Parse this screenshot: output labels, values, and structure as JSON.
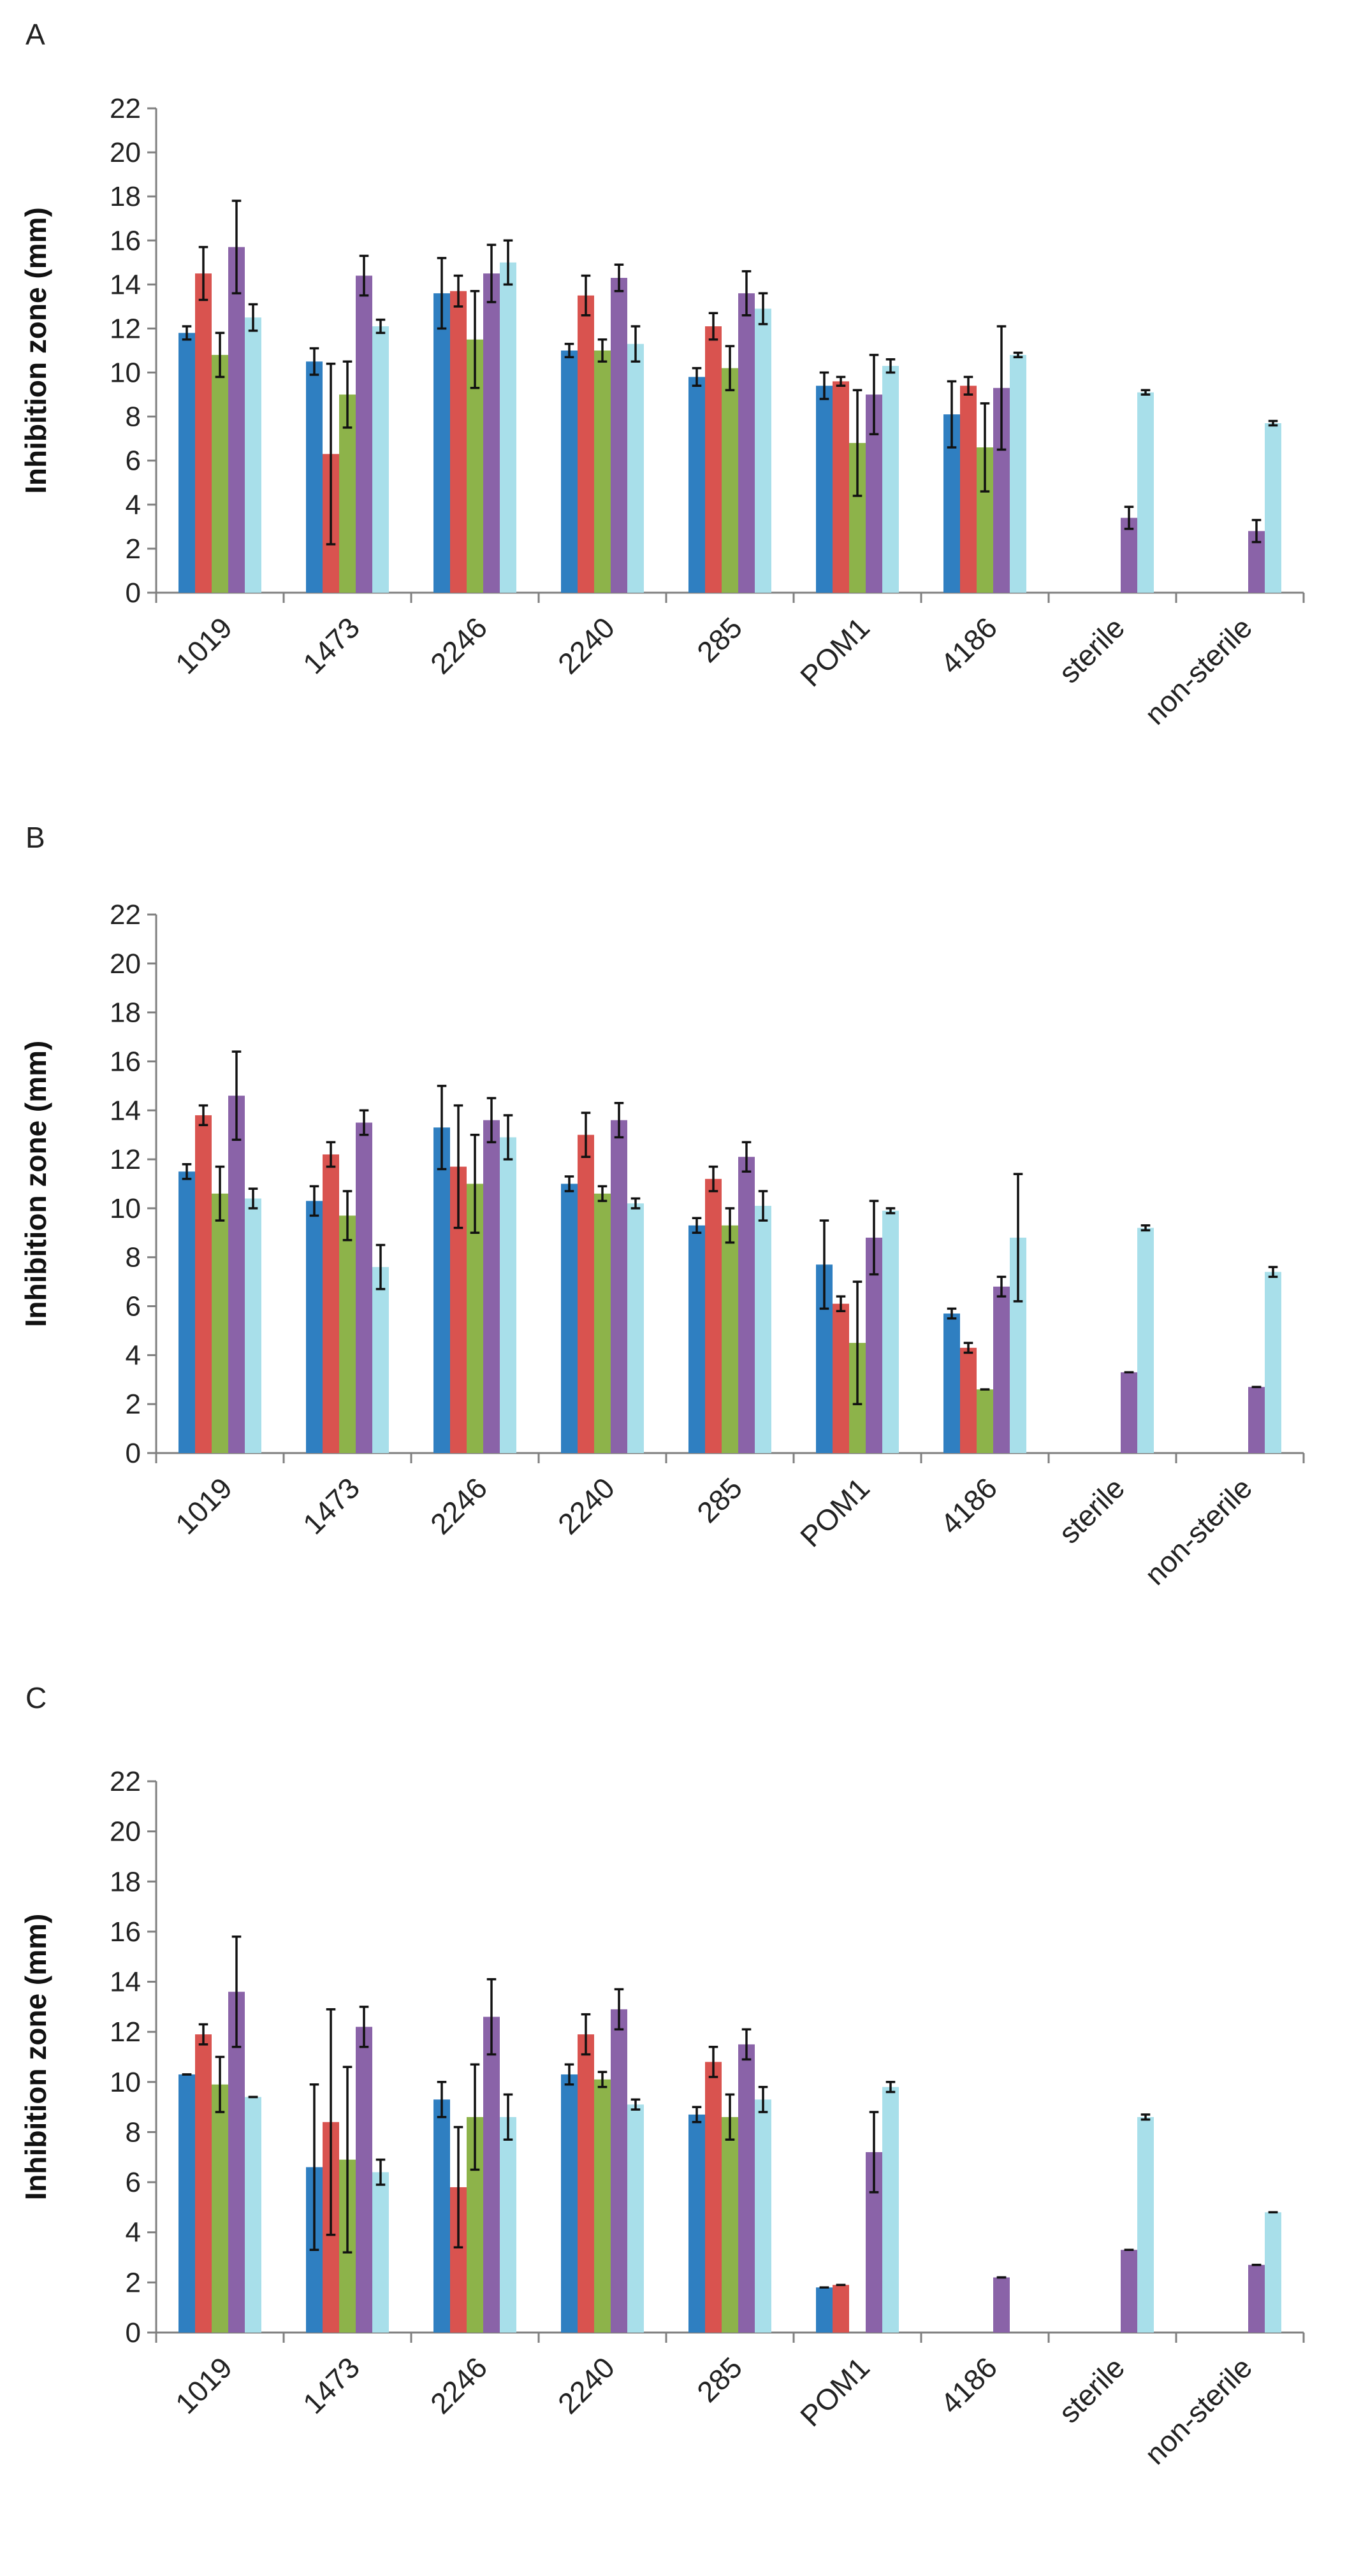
{
  "figure": {
    "series_colors": [
      "#2f7fc1",
      "#d9534f",
      "#8db34a",
      "#8a63a8",
      "#a8dfea"
    ]
  },
  "chart_data": [
    {
      "panel": "A",
      "type": "bar",
      "ylabel": "Inhibition zone (mm)",
      "xlabel": "",
      "ylim": [
        0,
        22
      ],
      "yticks": [
        0,
        2,
        4,
        6,
        8,
        10,
        12,
        14,
        16,
        18,
        20,
        22
      ],
      "categories": [
        "1019",
        "1473",
        "2246",
        "2240",
        "285",
        "POM1",
        "4186",
        "sterile",
        "non-sterile"
      ],
      "series": [
        {
          "values": [
            11.8,
            10.5,
            13.6,
            11.0,
            9.8,
            9.4,
            8.1,
            0,
            0
          ],
          "errors": [
            0.3,
            0.6,
            1.6,
            0.3,
            0.4,
            0.6,
            1.5,
            0,
            0
          ]
        },
        {
          "values": [
            14.5,
            6.3,
            13.7,
            13.5,
            12.1,
            9.6,
            9.4,
            0,
            0
          ],
          "errors": [
            1.2,
            4.1,
            0.7,
            0.9,
            0.6,
            0.2,
            0.4,
            0,
            0
          ]
        },
        {
          "values": [
            10.8,
            9.0,
            11.5,
            11.0,
            10.2,
            6.8,
            6.6,
            0,
            0
          ],
          "errors": [
            1.0,
            1.5,
            2.2,
            0.5,
            1.0,
            2.4,
            2.0,
            0,
            0
          ]
        },
        {
          "values": [
            15.7,
            14.4,
            14.5,
            14.3,
            13.6,
            9.0,
            9.3,
            3.4,
            2.8
          ],
          "errors": [
            2.1,
            0.9,
            1.3,
            0.6,
            1.0,
            1.8,
            2.8,
            0.5,
            0.5
          ]
        },
        {
          "values": [
            12.5,
            12.1,
            15.0,
            11.3,
            12.9,
            10.3,
            10.8,
            9.1,
            7.7
          ],
          "errors": [
            0.6,
            0.3,
            1.0,
            0.8,
            0.7,
            0.3,
            0.1,
            0.1,
            0.1
          ]
        }
      ]
    },
    {
      "panel": "B",
      "type": "bar",
      "ylabel": "Inhibition zone (mm)",
      "xlabel": "",
      "ylim": [
        0,
        22
      ],
      "yticks": [
        0,
        2,
        4,
        6,
        8,
        10,
        12,
        14,
        16,
        18,
        20,
        22
      ],
      "categories": [
        "1019",
        "1473",
        "2246",
        "2240",
        "285",
        "POM1",
        "4186",
        "sterile",
        "non-sterile"
      ],
      "series": [
        {
          "values": [
            11.5,
            10.3,
            13.3,
            11.0,
            9.3,
            7.7,
            5.7,
            0,
            0
          ],
          "errors": [
            0.3,
            0.6,
            1.7,
            0.3,
            0.3,
            1.8,
            0.2,
            0,
            0
          ]
        },
        {
          "values": [
            13.8,
            12.2,
            11.7,
            13.0,
            11.2,
            6.1,
            4.3,
            0,
            0
          ],
          "errors": [
            0.4,
            0.5,
            2.5,
            0.9,
            0.5,
            0.3,
            0.2,
            0,
            0
          ]
        },
        {
          "values": [
            10.6,
            9.7,
            11.0,
            10.6,
            9.3,
            4.5,
            2.6,
            0,
            0
          ],
          "errors": [
            1.1,
            1.0,
            2.0,
            0.3,
            0.7,
            2.5,
            0,
            0,
            0
          ]
        },
        {
          "values": [
            14.6,
            13.5,
            13.6,
            13.6,
            12.1,
            8.8,
            6.8,
            3.3,
            2.7
          ],
          "errors": [
            1.8,
            0.5,
            0.9,
            0.7,
            0.6,
            1.5,
            0.4,
            0,
            0
          ]
        },
        {
          "values": [
            10.4,
            7.6,
            12.9,
            10.2,
            10.1,
            9.9,
            8.8,
            9.2,
            7.4
          ],
          "errors": [
            0.4,
            0.9,
            0.9,
            0.2,
            0.6,
            0.1,
            2.6,
            0.1,
            0.2
          ]
        }
      ]
    },
    {
      "panel": "C",
      "type": "bar",
      "ylabel": "Inhibition zone (mm)",
      "xlabel": "",
      "ylim": [
        0,
        22
      ],
      "yticks": [
        0,
        2,
        4,
        6,
        8,
        10,
        12,
        14,
        16,
        18,
        20,
        22
      ],
      "categories": [
        "1019",
        "1473",
        "2246",
        "2240",
        "285",
        "POM1",
        "4186",
        "sterile",
        "non-sterile"
      ],
      "series": [
        {
          "values": [
            10.3,
            6.6,
            9.3,
            10.3,
            8.7,
            1.8,
            0,
            0,
            0
          ],
          "errors": [
            0,
            3.3,
            0.7,
            0.4,
            0.3,
            0,
            0,
            0,
            0
          ]
        },
        {
          "values": [
            11.9,
            8.4,
            5.8,
            11.9,
            10.8,
            1.9,
            0,
            0,
            0
          ],
          "errors": [
            0.4,
            4.5,
            2.4,
            0.8,
            0.6,
            0,
            0,
            0,
            0
          ]
        },
        {
          "values": [
            9.9,
            6.9,
            8.6,
            10.1,
            8.6,
            0,
            0,
            0,
            0
          ],
          "errors": [
            1.1,
            3.7,
            2.1,
            0.3,
            0.9,
            0,
            0,
            0,
            0
          ]
        },
        {
          "values": [
            13.6,
            12.2,
            12.6,
            12.9,
            11.5,
            7.2,
            2.2,
            3.3,
            2.7
          ],
          "errors": [
            2.2,
            0.8,
            1.5,
            0.8,
            0.6,
            1.6,
            0,
            0,
            0
          ]
        },
        {
          "values": [
            9.4,
            6.4,
            8.6,
            9.1,
            9.3,
            9.8,
            0,
            8.6,
            4.8
          ],
          "errors": [
            0,
            0.5,
            0.9,
            0.2,
            0.5,
            0.2,
            0,
            0.1,
            0
          ]
        }
      ]
    }
  ]
}
